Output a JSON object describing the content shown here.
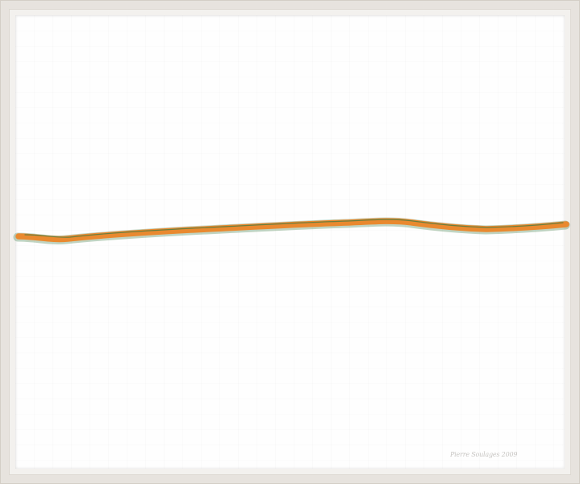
{
  "artwork": {
    "stroke_color": "#e9892f",
    "stroke_edge_color": "#3f7b43",
    "background_color": "#fefefe",
    "frame_color": "#e7e3de",
    "signature_text": "Pierre Soulages 2009"
  }
}
